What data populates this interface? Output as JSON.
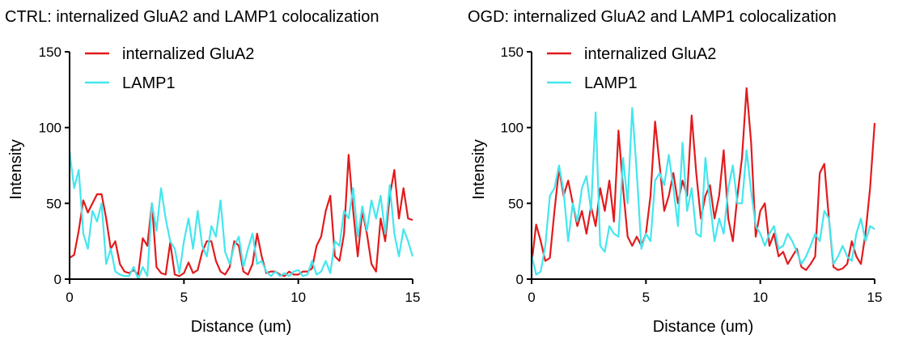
{
  "chart_data": [
    {
      "type": "line",
      "title": "CTRL: internalized GluA2 and LAMP1 colocalization",
      "xlabel": "Distance (um)",
      "ylabel": "Intensity",
      "xlim": [
        0,
        15
      ],
      "ylim": [
        0,
        150
      ],
      "xticks": [
        0,
        5,
        10,
        15
      ],
      "yticks": [
        0,
        50,
        100,
        150
      ],
      "grid": false,
      "legend_position": "top-left",
      "series": [
        {
          "name": "internalized GluA2",
          "color": "#e31a1c",
          "x": [
            0,
            0.2,
            0.4,
            0.6,
            0.8,
            1,
            1.2,
            1.4,
            1.6,
            1.8,
            2,
            2.2,
            2.4,
            2.6,
            2.8,
            3,
            3.2,
            3.4,
            3.6,
            3.8,
            4,
            4.2,
            4.4,
            4.6,
            4.8,
            5,
            5.2,
            5.4,
            5.6,
            5.8,
            6,
            6.2,
            6.4,
            6.6,
            6.8,
            7,
            7.2,
            7.4,
            7.6,
            7.8,
            8,
            8.2,
            8.4,
            8.6,
            8.8,
            9,
            9.2,
            9.4,
            9.6,
            9.8,
            10,
            10.2,
            10.4,
            10.6,
            10.8,
            11,
            11.2,
            11.4,
            11.6,
            11.8,
            12,
            12.2,
            12.4,
            12.6,
            12.8,
            13,
            13.2,
            13.4,
            13.6,
            13.8,
            14,
            14.2,
            14.4,
            14.6,
            14.8,
            15
          ],
          "y": [
            14,
            16,
            32,
            52,
            44,
            50,
            56,
            56,
            40,
            20,
            25,
            10,
            5,
            4,
            6,
            3,
            27,
            22,
            50,
            8,
            4,
            3,
            24,
            3,
            2,
            4,
            11,
            4,
            6,
            18,
            25,
            25,
            12,
            5,
            3,
            8,
            25,
            22,
            5,
            3,
            10,
            30,
            15,
            4,
            5,
            5,
            3,
            2,
            5,
            3,
            3,
            5,
            5,
            7,
            22,
            28,
            45,
            55,
            15,
            12,
            30,
            82,
            45,
            15,
            45,
            30,
            10,
            5,
            40,
            25,
            55,
            72,
            40,
            60,
            40,
            39
          ]
        },
        {
          "name": "LAMP1",
          "color": "#44e6ee",
          "x": [
            0,
            0.2,
            0.4,
            0.6,
            0.8,
            1,
            1.2,
            1.4,
            1.6,
            1.8,
            2,
            2.2,
            2.4,
            2.6,
            2.8,
            3,
            3.2,
            3.4,
            3.6,
            3.8,
            4,
            4.2,
            4.4,
            4.6,
            4.8,
            5,
            5.2,
            5.4,
            5.6,
            5.8,
            6,
            6.2,
            6.4,
            6.6,
            6.8,
            7,
            7.2,
            7.4,
            7.6,
            7.8,
            8,
            8.2,
            8.4,
            8.6,
            8.8,
            9,
            9.2,
            9.4,
            9.6,
            9.8,
            10,
            10.2,
            10.4,
            10.6,
            10.8,
            11,
            11.2,
            11.4,
            11.6,
            11.8,
            12,
            12.2,
            12.4,
            12.6,
            12.8,
            13,
            13.2,
            13.4,
            13.6,
            13.8,
            14,
            14.2,
            14.4,
            14.6,
            14.8,
            15
          ],
          "y": [
            84,
            60,
            72,
            30,
            20,
            45,
            38,
            50,
            10,
            20,
            5,
            3,
            2,
            2,
            8,
            0,
            8,
            2,
            50,
            32,
            60,
            40,
            25,
            20,
            4,
            25,
            40,
            20,
            45,
            22,
            15,
            35,
            28,
            52,
            18,
            10,
            22,
            28,
            8,
            20,
            30,
            10,
            12,
            5,
            2,
            5,
            2,
            4,
            2,
            5,
            6,
            2,
            3,
            12,
            3,
            5,
            12,
            4,
            25,
            22,
            45,
            40,
            60,
            28,
            48,
            32,
            52,
            40,
            55,
            30,
            62,
            30,
            15,
            33,
            25,
            15
          ]
        }
      ]
    },
    {
      "type": "line",
      "title": "OGD: internalized GluA2 and LAMP1 colocalization",
      "xlabel": "Distance (um)",
      "ylabel": "Intensity",
      "xlim": [
        0,
        15
      ],
      "ylim": [
        0,
        150
      ],
      "xticks": [
        0,
        5,
        10,
        15
      ],
      "yticks": [
        0,
        50,
        100,
        150
      ],
      "grid": false,
      "legend_position": "top-left",
      "series": [
        {
          "name": "internalized GluA2",
          "color": "#e31a1c",
          "x": [
            0,
            0.2,
            0.4,
            0.6,
            0.8,
            1,
            1.2,
            1.4,
            1.6,
            1.8,
            2,
            2.2,
            2.4,
            2.6,
            2.8,
            3,
            3.2,
            3.4,
            3.6,
            3.8,
            4,
            4.2,
            4.4,
            4.6,
            4.8,
            5,
            5.2,
            5.4,
            5.6,
            5.8,
            6,
            6.2,
            6.4,
            6.6,
            6.8,
            7,
            7.2,
            7.4,
            7.6,
            7.8,
            8,
            8.2,
            8.4,
            8.6,
            8.8,
            9,
            9.2,
            9.4,
            9.6,
            9.8,
            10,
            10.2,
            10.4,
            10.6,
            10.8,
            11,
            11.2,
            11.4,
            11.6,
            11.8,
            12,
            12.2,
            12.4,
            12.6,
            12.8,
            13,
            13.2,
            13.4,
            13.6,
            13.8,
            14,
            14.2,
            14.4,
            14.6,
            14.8,
            15
          ],
          "y": [
            10,
            36,
            25,
            12,
            14,
            45,
            73,
            55,
            65,
            50,
            35,
            45,
            30,
            48,
            35,
            60,
            45,
            65,
            38,
            98,
            60,
            28,
            22,
            28,
            22,
            30,
            55,
            104,
            75,
            45,
            55,
            70,
            50,
            65,
            55,
            108,
            70,
            40,
            55,
            62,
            40,
            55,
            85,
            40,
            25,
            55,
            80,
            126,
            90,
            28,
            45,
            50,
            22,
            30,
            15,
            18,
            10,
            15,
            20,
            8,
            6,
            10,
            15,
            70,
            76,
            40,
            8,
            6,
            7,
            10,
            25,
            15,
            10,
            30,
            60,
            103
          ]
        },
        {
          "name": "LAMP1",
          "color": "#44e6ee",
          "x": [
            0,
            0.2,
            0.4,
            0.6,
            0.8,
            1,
            1.2,
            1.4,
            1.6,
            1.8,
            2,
            2.2,
            2.4,
            2.6,
            2.8,
            3,
            3.2,
            3.4,
            3.6,
            3.8,
            4,
            4.2,
            4.4,
            4.6,
            4.8,
            5,
            5.2,
            5.4,
            5.6,
            5.8,
            6,
            6.2,
            6.4,
            6.6,
            6.8,
            7,
            7.2,
            7.4,
            7.6,
            7.8,
            8,
            8.2,
            8.4,
            8.6,
            8.8,
            9,
            9.2,
            9.4,
            9.6,
            9.8,
            10,
            10.2,
            10.4,
            10.6,
            10.8,
            11,
            11.2,
            11.4,
            11.6,
            11.8,
            12,
            12.2,
            12.4,
            12.6,
            12.8,
            13,
            13.2,
            13.4,
            13.6,
            13.8,
            14,
            14.2,
            14.4,
            14.6,
            14.8,
            15
          ],
          "y": [
            16,
            3,
            5,
            22,
            55,
            60,
            75,
            58,
            25,
            50,
            38,
            60,
            68,
            45,
            110,
            22,
            18,
            35,
            30,
            28,
            80,
            50,
            113,
            70,
            20,
            30,
            25,
            65,
            70,
            62,
            82,
            60,
            35,
            90,
            45,
            60,
            30,
            28,
            80,
            50,
            25,
            40,
            30,
            60,
            75,
            50,
            50,
            85,
            58,
            35,
            30,
            22,
            30,
            35,
            20,
            22,
            30,
            25,
            18,
            10,
            15,
            22,
            30,
            25,
            45,
            40,
            10,
            15,
            22,
            15,
            12,
            30,
            40,
            25,
            35,
            33
          ]
        }
      ]
    }
  ]
}
